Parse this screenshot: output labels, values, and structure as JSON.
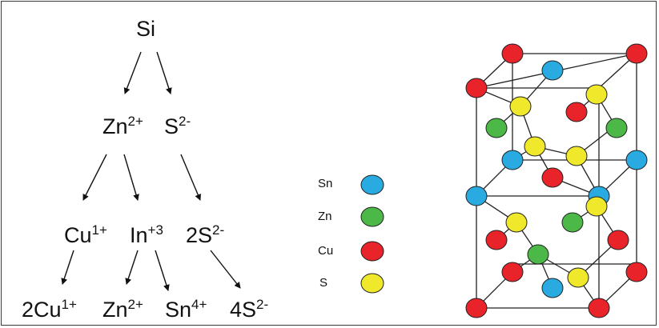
{
  "tree": {
    "root": "Si",
    "level1": [
      {
        "base": "Zn",
        "charge": "2+"
      },
      {
        "base": "S",
        "charge": "2-"
      }
    ],
    "level2": [
      {
        "base": "Cu",
        "charge": "1+"
      },
      {
        "base": "In",
        "charge": "+3"
      },
      {
        "base": "2S",
        "charge": "2-"
      }
    ],
    "level3": [
      {
        "base": "2Cu",
        "charge": "1+"
      },
      {
        "base": "Zn",
        "charge": "2+"
      },
      {
        "base": "Sn",
        "charge": "4+"
      },
      {
        "base": "4S",
        "charge": "2-"
      }
    ]
  },
  "legend": [
    {
      "label": "Sn",
      "color": "#29abe2"
    },
    {
      "label": "Zn",
      "color": "#4cb848"
    },
    {
      "label": "Cu",
      "color": "#e8242a"
    },
    {
      "label": "S",
      "color": "#f0e82a"
    }
  ]
}
